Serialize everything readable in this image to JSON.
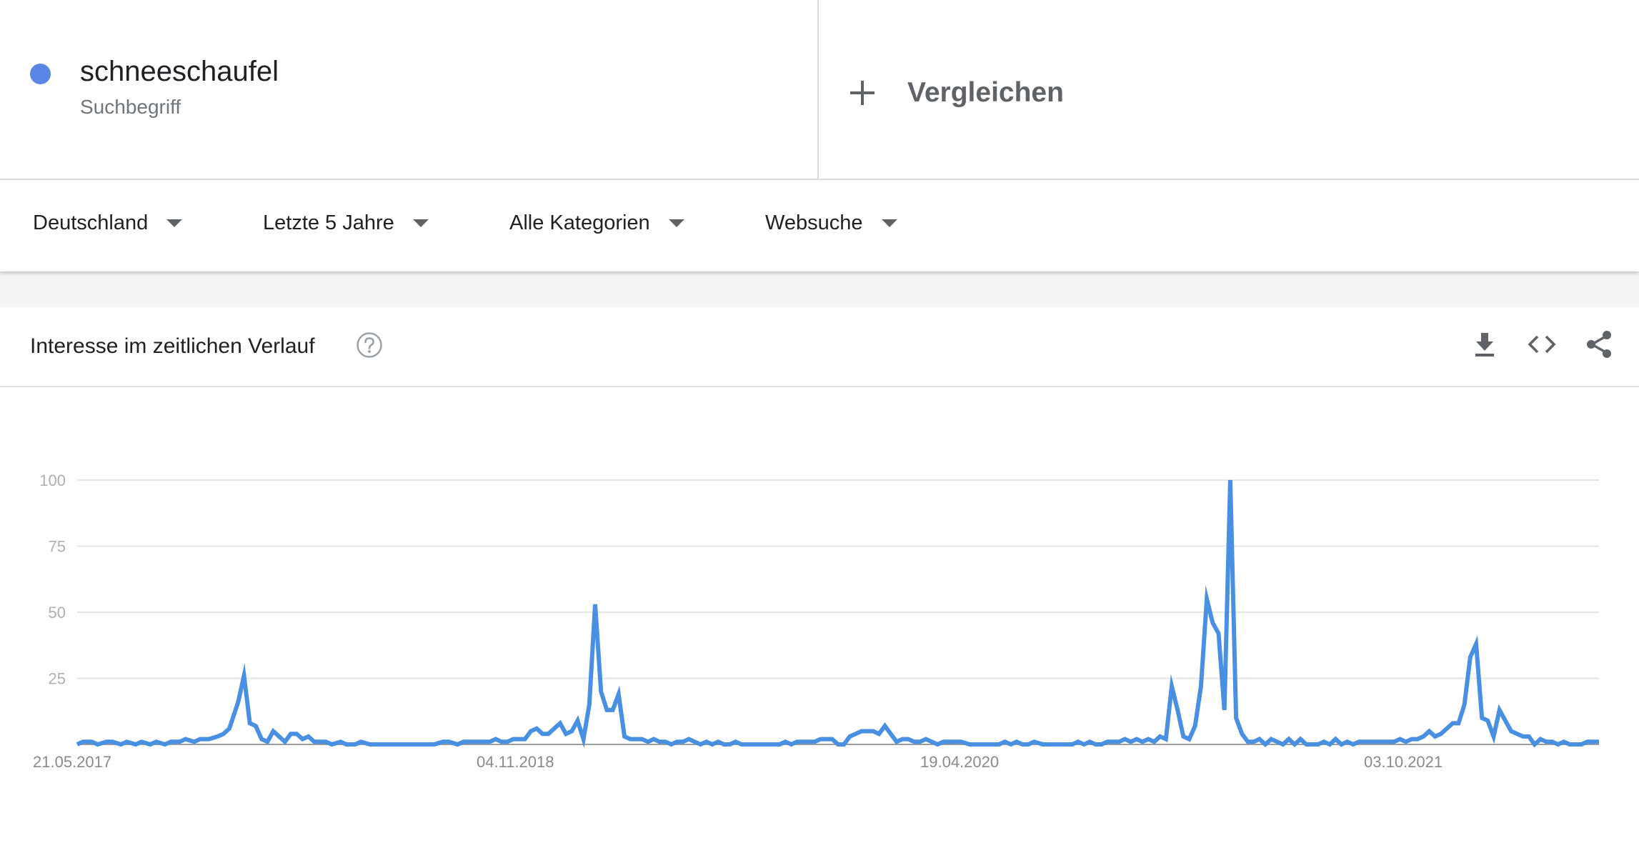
{
  "term": {
    "name": "schneeschaufel",
    "type": "Suchbegriff",
    "color": "#5b86e5"
  },
  "compare": {
    "label": "Vergleichen",
    "icon": "plus-icon"
  },
  "filters": [
    {
      "label": "Deutschland"
    },
    {
      "label": "Letzte 5 Jahre"
    },
    {
      "label": "Alle Kategorien"
    },
    {
      "label": "Websuche"
    }
  ],
  "card": {
    "title": "Interesse im zeitlichen Verlauf",
    "icons": [
      "help-icon",
      "download-icon",
      "embed-code-icon",
      "share-icon"
    ]
  },
  "chart_data": {
    "type": "line",
    "title": "",
    "xlabel": "",
    "ylabel": "",
    "ylim": [
      0,
      100
    ],
    "yticks": [
      100,
      75,
      50,
      25
    ],
    "xtick_labels": [
      "21.05.2017",
      "04.11.2018",
      "19.04.2020",
      "03.10.2021"
    ],
    "grid": true,
    "legend": "none",
    "line_color": "#4a90e2",
    "series": [
      {
        "name": "schneeschaufel",
        "x_unit": "week index from 21.05.2017",
        "points": [
          [
            0,
            0
          ],
          [
            2,
            1
          ],
          [
            5,
            1
          ],
          [
            7,
            0
          ],
          [
            10,
            1
          ],
          [
            12,
            1
          ],
          [
            15,
            0
          ],
          [
            17,
            1
          ],
          [
            20,
            0
          ],
          [
            22,
            1
          ],
          [
            25,
            0
          ],
          [
            27,
            1
          ],
          [
            30,
            0
          ],
          [
            32,
            1
          ],
          [
            35,
            1
          ],
          [
            37,
            2
          ],
          [
            40,
            1
          ],
          [
            42,
            2
          ],
          [
            45,
            2
          ],
          [
            48,
            3
          ],
          [
            50,
            4
          ],
          [
            52,
            6
          ],
          [
            55,
            16
          ],
          [
            57,
            26
          ],
          [
            59,
            8
          ],
          [
            61,
            7
          ],
          [
            63,
            2
          ],
          [
            65,
            1
          ],
          [
            67,
            5
          ],
          [
            69,
            3
          ],
          [
            71,
            1
          ],
          [
            73,
            4
          ],
          [
            75,
            4
          ],
          [
            77,
            2
          ],
          [
            79,
            3
          ],
          [
            81,
            1
          ],
          [
            83,
            1
          ],
          [
            85,
            1
          ],
          [
            87,
            0
          ],
          [
            90,
            1
          ],
          [
            92,
            0
          ],
          [
            95,
            0
          ],
          [
            97,
            1
          ],
          [
            100,
            0
          ],
          [
            105,
            0
          ],
          [
            110,
            0
          ],
          [
            115,
            0
          ],
          [
            120,
            0
          ],
          [
            122,
            0
          ],
          [
            125,
            1
          ],
          [
            127,
            1
          ],
          [
            130,
            0
          ],
          [
            132,
            1
          ],
          [
            135,
            1
          ],
          [
            138,
            1
          ],
          [
            141,
            1
          ],
          [
            143,
            2
          ],
          [
            145,
            1
          ],
          [
            147,
            1
          ],
          [
            149,
            2
          ],
          [
            151,
            2
          ],
          [
            153,
            2
          ],
          [
            155,
            5
          ],
          [
            157,
            6
          ],
          [
            159,
            4
          ],
          [
            161,
            4
          ],
          [
            163,
            6
          ],
          [
            165,
            8
          ],
          [
            167,
            4
          ],
          [
            169,
            5
          ],
          [
            171,
            9
          ],
          [
            173,
            2
          ],
          [
            175,
            15
          ],
          [
            177,
            53
          ],
          [
            179,
            20
          ],
          [
            181,
            13
          ],
          [
            183,
            13
          ],
          [
            185,
            19
          ],
          [
            187,
            3
          ],
          [
            189,
            2
          ],
          [
            191,
            2
          ],
          [
            193,
            2
          ],
          [
            195,
            1
          ],
          [
            197,
            2
          ],
          [
            199,
            1
          ],
          [
            201,
            1
          ],
          [
            203,
            0
          ],
          [
            205,
            1
          ],
          [
            207,
            1
          ],
          [
            209,
            2
          ],
          [
            211,
            1
          ],
          [
            213,
            0
          ],
          [
            215,
            1
          ],
          [
            217,
            0
          ],
          [
            219,
            1
          ],
          [
            221,
            0
          ],
          [
            223,
            0
          ],
          [
            225,
            1
          ],
          [
            227,
            0
          ],
          [
            230,
            0
          ],
          [
            235,
            0
          ],
          [
            240,
            0
          ],
          [
            242,
            1
          ],
          [
            244,
            0
          ],
          [
            246,
            1
          ],
          [
            248,
            1
          ],
          [
            250,
            1
          ],
          [
            252,
            1
          ],
          [
            254,
            2
          ],
          [
            256,
            2
          ],
          [
            258,
            2
          ],
          [
            260,
            0
          ],
          [
            262,
            0
          ],
          [
            264,
            3
          ],
          [
            266,
            4
          ],
          [
            268,
            5
          ],
          [
            270,
            5
          ],
          [
            272,
            5
          ],
          [
            274,
            4
          ],
          [
            276,
            7
          ],
          [
            278,
            4
          ],
          [
            280,
            1
          ],
          [
            282,
            2
          ],
          [
            284,
            2
          ],
          [
            286,
            1
          ],
          [
            288,
            1
          ],
          [
            290,
            2
          ],
          [
            292,
            1
          ],
          [
            294,
            0
          ],
          [
            296,
            1
          ],
          [
            298,
            1
          ],
          [
            300,
            1
          ],
          [
            302,
            1
          ],
          [
            305,
            0
          ],
          [
            310,
            0
          ],
          [
            315,
            0
          ],
          [
            317,
            1
          ],
          [
            319,
            0
          ],
          [
            321,
            1
          ],
          [
            323,
            0
          ],
          [
            325,
            0
          ],
          [
            327,
            1
          ],
          [
            330,
            0
          ],
          [
            335,
            0
          ],
          [
            340,
            0
          ],
          [
            342,
            1
          ],
          [
            344,
            0
          ],
          [
            346,
            1
          ],
          [
            348,
            0
          ],
          [
            350,
            0
          ],
          [
            352,
            1
          ],
          [
            354,
            1
          ],
          [
            356,
            1
          ],
          [
            358,
            2
          ],
          [
            360,
            1
          ],
          [
            362,
            2
          ],
          [
            364,
            1
          ],
          [
            366,
            2
          ],
          [
            368,
            1
          ],
          [
            370,
            3
          ],
          [
            372,
            2
          ],
          [
            374,
            22
          ],
          [
            376,
            13
          ],
          [
            378,
            3
          ],
          [
            380,
            2
          ],
          [
            382,
            7
          ],
          [
            384,
            22
          ],
          [
            386,
            55
          ],
          [
            388,
            46
          ],
          [
            390,
            42
          ],
          [
            392,
            13
          ],
          [
            394,
            100
          ],
          [
            396,
            10
          ],
          [
            398,
            4
          ],
          [
            400,
            1
          ],
          [
            402,
            1
          ],
          [
            404,
            2
          ],
          [
            406,
            0
          ],
          [
            408,
            2
          ],
          [
            410,
            1
          ],
          [
            412,
            0
          ],
          [
            414,
            2
          ],
          [
            416,
            0
          ],
          [
            418,
            2
          ],
          [
            420,
            0
          ],
          [
            422,
            0
          ],
          [
            424,
            0
          ],
          [
            426,
            1
          ],
          [
            428,
            0
          ],
          [
            430,
            2
          ],
          [
            432,
            0
          ],
          [
            434,
            1
          ],
          [
            436,
            0
          ],
          [
            438,
            1
          ],
          [
            440,
            1
          ],
          [
            442,
            1
          ],
          [
            444,
            1
          ],
          [
            446,
            1
          ],
          [
            448,
            1
          ],
          [
            450,
            1
          ],
          [
            452,
            2
          ],
          [
            454,
            1
          ],
          [
            456,
            2
          ],
          [
            458,
            2
          ],
          [
            460,
            3
          ],
          [
            462,
            5
          ],
          [
            464,
            3
          ],
          [
            466,
            4
          ],
          [
            468,
            6
          ],
          [
            470,
            8
          ],
          [
            472,
            8
          ],
          [
            474,
            15
          ],
          [
            476,
            33
          ],
          [
            478,
            38
          ],
          [
            480,
            10
          ],
          [
            482,
            9
          ],
          [
            484,
            3
          ],
          [
            486,
            13
          ],
          [
            488,
            9
          ],
          [
            490,
            5
          ],
          [
            492,
            4
          ],
          [
            494,
            3
          ],
          [
            496,
            3
          ],
          [
            498,
            0
          ],
          [
            500,
            2
          ],
          [
            502,
            1
          ],
          [
            504,
            1
          ],
          [
            506,
            0
          ],
          [
            508,
            1
          ],
          [
            510,
            0
          ],
          [
            512,
            0
          ],
          [
            514,
            0
          ],
          [
            516,
            1
          ],
          [
            518,
            1
          ],
          [
            520,
            1
          ]
        ]
      }
    ]
  }
}
